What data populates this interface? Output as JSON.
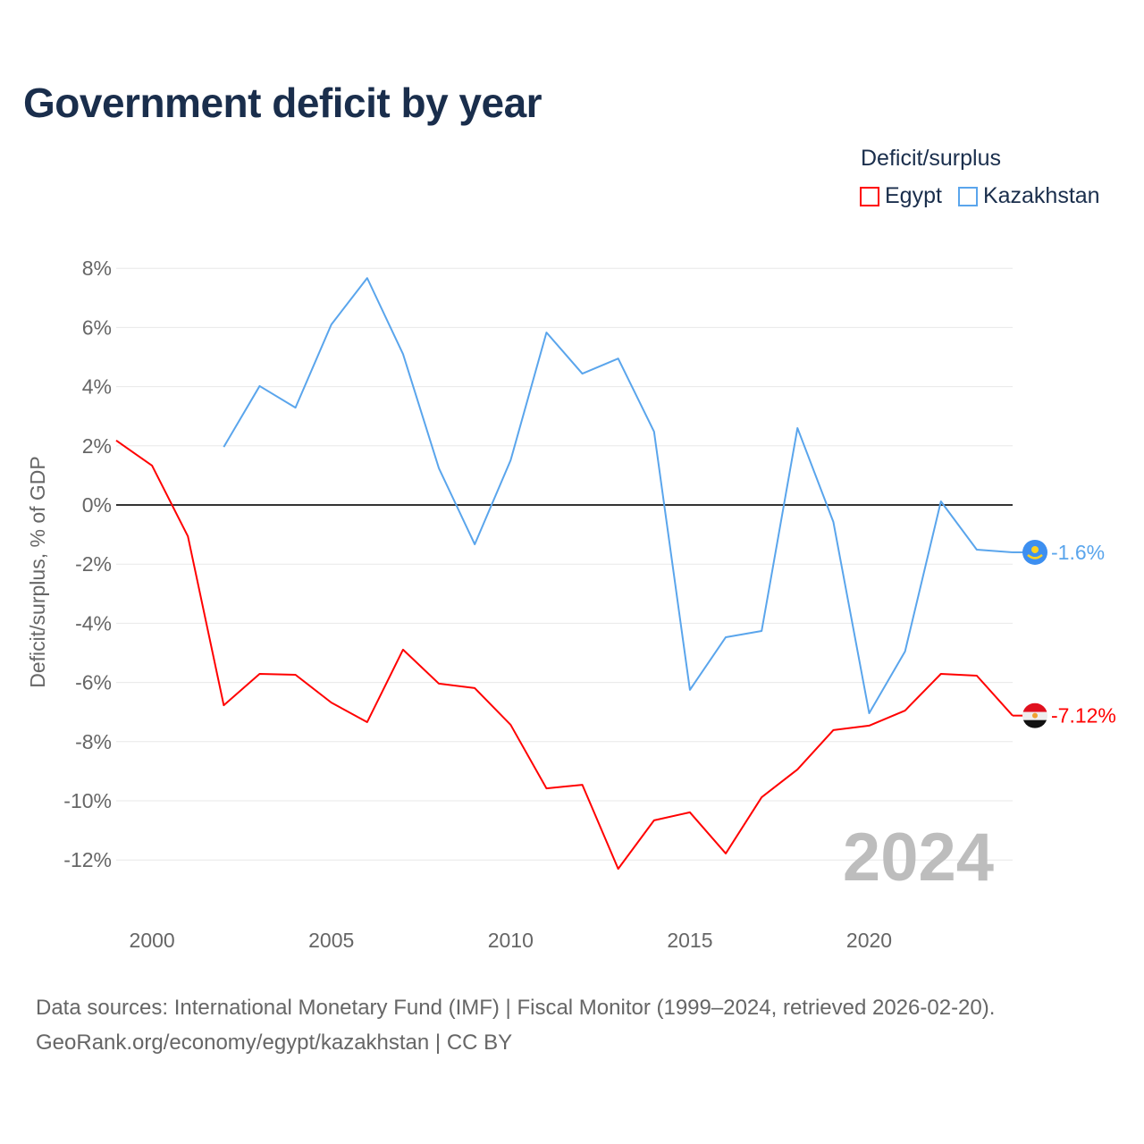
{
  "title": "Government deficit by year",
  "legend": {
    "title": "Deficit/surplus",
    "items": [
      {
        "label": "Egypt",
        "color": "#ff0000"
      },
      {
        "label": "Kazakhstan",
        "color": "#5aa5ec"
      }
    ]
  },
  "source": {
    "line1": "Data sources: International Monetary Fund (IMF) | Fiscal Monitor (1999–2024, retrieved 2026-02-20).",
    "line2": "GeoRank.org/economy/egypt/kazakhstan | CC BY"
  },
  "chart_data": {
    "type": "line",
    "title": "Government deficit by year",
    "ylabel": "Deficit/surplus, % of GDP",
    "xlabel": "",
    "xlim": [
      1999,
      2024
    ],
    "ylim": [
      -13,
      8
    ],
    "yticks": [
      8,
      6,
      4,
      2,
      0,
      -2,
      -4,
      -6,
      -8,
      -10,
      -12
    ],
    "ytick_labels": [
      "8%",
      "6%",
      "4%",
      "2%",
      "0%",
      "-2%",
      "-4%",
      "-6%",
      "-8%",
      "-10%",
      "-12%"
    ],
    "xticks": [
      2000,
      2005,
      2010,
      2015,
      2020
    ],
    "xtick_labels": [
      "2000",
      "2005",
      "2010",
      "2015",
      "2020"
    ],
    "year_watermark": "2024",
    "series": [
      {
        "name": "Egypt",
        "color": "#ff0000",
        "end_label": "-7.12%",
        "x": [
          1999,
          2000,
          2001,
          2002,
          2003,
          2004,
          2005,
          2006,
          2007,
          2008,
          2009,
          2010,
          2011,
          2012,
          2013,
          2014,
          2015,
          2016,
          2017,
          2018,
          2019,
          2020,
          2021,
          2022,
          2023,
          2024
        ],
        "values": [
          2.18,
          1.33,
          -1.06,
          -6.77,
          -5.71,
          -5.74,
          -6.68,
          -7.34,
          -4.89,
          -6.04,
          -6.19,
          -7.43,
          -9.58,
          -9.46,
          -12.3,
          -10.66,
          -10.39,
          -11.78,
          -9.88,
          -8.94,
          -7.61,
          -7.46,
          -6.95,
          -5.71,
          -5.77,
          -7.12
        ]
      },
      {
        "name": "Kazakhstan",
        "color": "#5aa5ec",
        "end_label": "-1.6%",
        "x": [
          2002,
          2003,
          2004,
          2005,
          2006,
          2007,
          2008,
          2009,
          2010,
          2011,
          2012,
          2013,
          2014,
          2015,
          2016,
          2017,
          2018,
          2019,
          2020,
          2021,
          2022,
          2023,
          2024
        ],
        "values": [
          1.96,
          4.02,
          3.29,
          6.1,
          7.67,
          5.1,
          1.24,
          -1.33,
          1.51,
          5.83,
          4.44,
          4.95,
          2.48,
          -6.25,
          -4.47,
          -4.26,
          2.6,
          -0.57,
          -7.04,
          -4.95,
          0.12,
          -1.51,
          -1.6
        ]
      }
    ]
  }
}
